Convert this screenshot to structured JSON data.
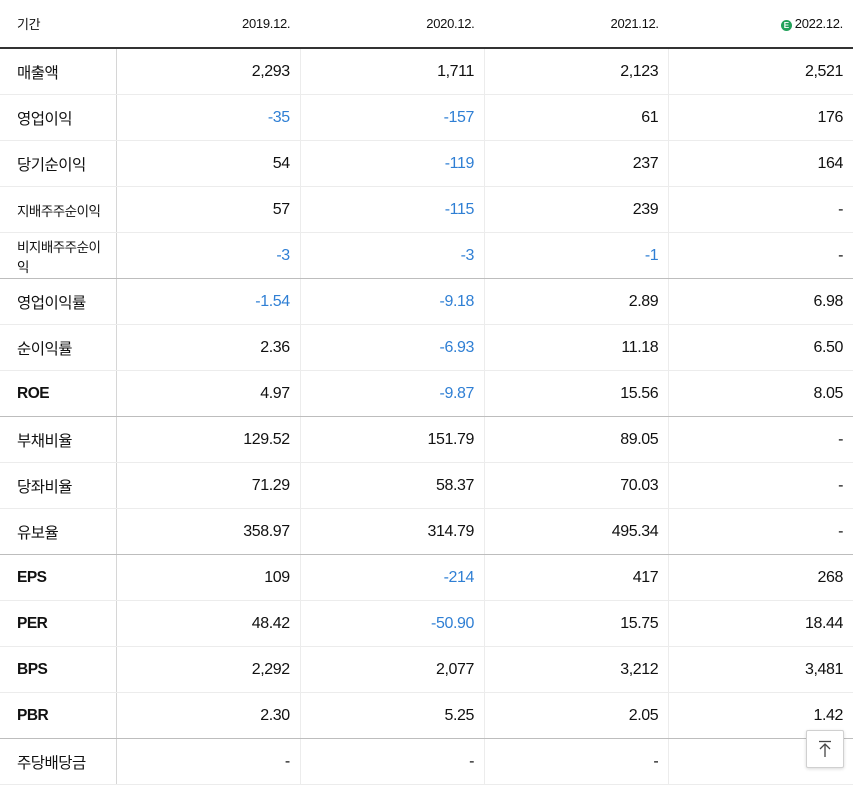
{
  "header": {
    "label": "기간",
    "columns": [
      "2019.12.",
      "2020.12.",
      "2021.12.",
      "2022.12."
    ],
    "estimate_icon": "estimate-icon",
    "estimate_icon_text": "E"
  },
  "rows": [
    {
      "label": "매출액",
      "values": [
        "2,293",
        "1,711",
        "2,123",
        "2,521"
      ]
    },
    {
      "label": "영업이익",
      "values": [
        "-35",
        "-157",
        "61",
        "176"
      ]
    },
    {
      "label": "당기순이익",
      "values": [
        "54",
        "-119",
        "237",
        "164"
      ]
    },
    {
      "label": "지배주주순이익",
      "values": [
        "57",
        "-115",
        "239",
        "-"
      ]
    },
    {
      "label": "비지배주주순이익",
      "values": [
        "-3",
        "-3",
        "-1",
        "-"
      ]
    },
    {
      "label": "영업이익률",
      "values": [
        "-1.54",
        "-9.18",
        "2.89",
        "6.98"
      ]
    },
    {
      "label": "순이익률",
      "values": [
        "2.36",
        "-6.93",
        "11.18",
        "6.50"
      ]
    },
    {
      "label": "ROE",
      "values": [
        "4.97",
        "-9.87",
        "15.56",
        "8.05"
      ]
    },
    {
      "label": "부채비율",
      "values": [
        "129.52",
        "151.79",
        "89.05",
        "-"
      ]
    },
    {
      "label": "당좌비율",
      "values": [
        "71.29",
        "58.37",
        "70.03",
        "-"
      ]
    },
    {
      "label": "유보율",
      "values": [
        "358.97",
        "314.79",
        "495.34",
        "-"
      ]
    },
    {
      "label": "EPS",
      "values": [
        "109",
        "-214",
        "417",
        "268"
      ]
    },
    {
      "label": "PER",
      "values": [
        "48.42",
        "-50.90",
        "15.75",
        "18.44"
      ]
    },
    {
      "label": "BPS",
      "values": [
        "2,292",
        "2,077",
        "3,212",
        "3,481"
      ]
    },
    {
      "label": "PBR",
      "values": [
        "2.30",
        "5.25",
        "2.05",
        "1.42"
      ]
    },
    {
      "label": "주당배당금",
      "values": [
        "-",
        "-",
        "-",
        "-"
      ]
    }
  ],
  "colors": {
    "negative": "#2f7fd4",
    "estimate_badge": "#22a15a"
  },
  "scroll_top_icon": "arrow-up-icon"
}
